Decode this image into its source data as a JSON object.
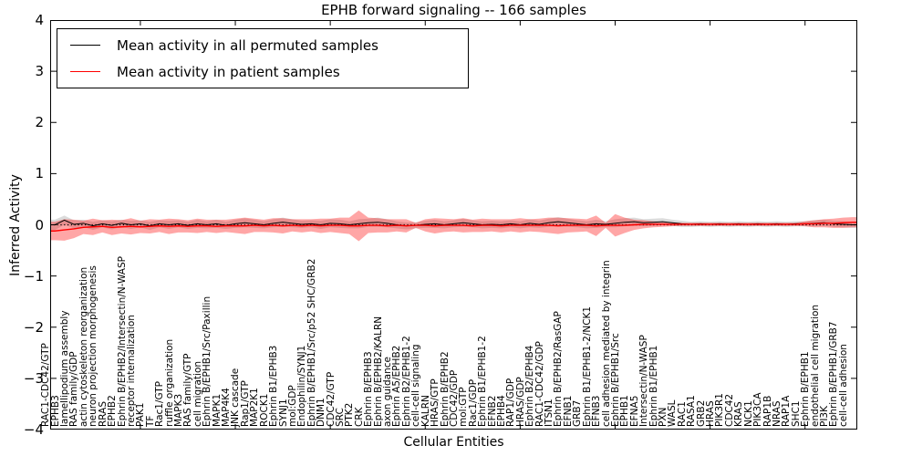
{
  "title": "EPHB forward signaling -- 166 samples",
  "axes": {
    "xlabel": "Cellular Entities",
    "ylabel": "Inferred Activity",
    "yticks": [
      4,
      3,
      2,
      1,
      0,
      -1,
      -2,
      -3,
      -4
    ]
  },
  "legend": [
    {
      "label": "Mean activity in all permuted samples",
      "color": "#000000"
    },
    {
      "label": "Mean activity in patient samples",
      "color": "#ff0000"
    }
  ],
  "colors": {
    "permuted_line": "#000000",
    "patient_line": "#ff0000",
    "patient_band": "#ff0000",
    "permuted_band": "#bdbdbd",
    "frame": "#000000"
  },
  "chart_data": {
    "type": "line",
    "title": "EPHB forward signaling -- 166 samples",
    "xlabel": "Cellular Entities",
    "ylabel": "Inferred Activity",
    "ylim": [
      -4,
      4
    ],
    "grid": false,
    "legend_position": "upper left",
    "zero_line_dotted": true,
    "categories": [
      "RAC1-CDC42/GTP",
      "EPHB3",
      "lamellipodium assembly",
      "RAS family/GDP",
      "actin cytoskeleton reorganization",
      "neuron projection morphogenesis",
      "RRAS",
      "EPHB2",
      "Ephrin B/EPHB2/Intersectin/N-WASP",
      "receptor internalization",
      "PAK1",
      "TF",
      "Rac1/GTP",
      "ruffle organization",
      "MAPK3",
      "RAS family/GTP",
      "cell migration",
      "Ephrin B/EPHB1/Src/Paxillin",
      "MAPK1",
      "MAP4K4",
      "JNK cascade",
      "Rap1/GTP",
      "MAP2K1",
      "ROCK1",
      "Ephrin B1/EPHB3",
      "SYNJ1",
      "mol:GDP",
      "Endophilin/SYNJ1",
      "Ephrin B/EPHB1/Src/p52 SHC/GRB2",
      "DNM1",
      "CDC42/GTP",
      "SRC",
      "PTK2",
      "CRK",
      "Ephrin B/EPHB3",
      "Ephrin B/EPHB2/KALRN",
      "axon guidance",
      "Ephrin A5/EPHB2",
      "Ephrin B2/EPHB1-2",
      "cell-cell signaling",
      "KALRN",
      "HRAS/GTP",
      "Ephrin B/EPHB2",
      "CDC42/GDP",
      "mol:GTP",
      "Rac1/GDP",
      "Ephrin B1/EPHB1-2",
      "EFNB2",
      "EPHB4",
      "RAP1/GDP",
      "HRAS/GDP",
      "Ephrin B2/EPHB4",
      "RAC1-CDC42/GDP",
      "ITSN1",
      "Ephrin B/EPHB2/RasGAP",
      "EFNB1",
      "GRB7",
      "Ephrin B1/EPHB1-2/NCK1",
      "EFNB3",
      "cell adhesion mediated by integrin",
      "Ephrin B/EPHB1/Src",
      "EPHB1",
      "EFNA5",
      "Intersectin/N-WASP",
      "Ephrin B1/EPHB1",
      "PXN",
      "WASL",
      "RAC1",
      "RASA1",
      "GRB2",
      "HRAS",
      "PIK3R1",
      "CDC42",
      "KRAS",
      "NCK1",
      "PIK3CA",
      "RAP1B",
      "NRAS",
      "RAP1A",
      "SHC1",
      "Ephrin B/EPHB1",
      "endothelial cell migration",
      "PI3K",
      "Ephrin B/EPHB1/GRB7",
      "cell-cell adhesion"
    ],
    "series": [
      {
        "name": "Mean activity in all permuted samples",
        "color": "#000000",
        "values": [
          0.0,
          0.09,
          0.01,
          0.03,
          -0.02,
          0.02,
          -0.01,
          0.03,
          0.0,
          0.02,
          -0.02,
          0.02,
          0.0,
          0.02,
          -0.01,
          0.02,
          0.0,
          0.02,
          -0.01,
          0.02,
          0.04,
          0.02,
          0.0,
          0.03,
          0.05,
          0.03,
          0.01,
          0.02,
          0.0,
          0.03,
          0.02,
          0.0,
          0.02,
          0.04,
          0.05,
          0.03,
          0.0,
          -0.02,
          -0.01,
          0.01,
          0.02,
          0.0,
          0.02,
          0.04,
          0.02,
          0.0,
          0.01,
          0.0,
          0.02,
          0.0,
          0.03,
          0.01,
          0.04,
          0.06,
          0.04,
          0.02,
          0.0,
          0.02,
          0.01,
          0.03,
          0.05,
          0.06,
          0.04,
          0.05,
          0.06,
          0.04,
          0.02,
          0.01,
          0.02,
          0.01,
          0.02,
          0.01,
          0.02,
          0.01,
          0.02,
          0.01,
          0.02,
          0.01,
          0.02,
          0.02,
          0.03,
          0.04,
          0.02,
          0.01,
          0.0
        ]
      },
      {
        "name": "Mean activity in patient samples",
        "color": "#ff0000",
        "values": [
          -0.12,
          -0.1,
          -0.08,
          -0.05,
          -0.04,
          -0.03,
          -0.05,
          -0.04,
          -0.03,
          -0.04,
          -0.03,
          -0.02,
          -0.03,
          -0.02,
          -0.03,
          -0.02,
          -0.02,
          -0.03,
          -0.02,
          -0.02,
          -0.02,
          -0.01,
          -0.02,
          -0.01,
          -0.02,
          -0.01,
          -0.02,
          -0.01,
          -0.02,
          -0.01,
          -0.01,
          -0.02,
          -0.02,
          -0.01,
          -0.01,
          -0.02,
          -0.01,
          -0.02,
          -0.01,
          -0.01,
          -0.02,
          -0.01,
          -0.01,
          -0.01,
          -0.02,
          -0.01,
          -0.01,
          -0.02,
          -0.01,
          -0.01,
          -0.01,
          -0.01,
          -0.01,
          -0.02,
          -0.01,
          -0.01,
          -0.01,
          -0.02,
          -0.01,
          -0.01,
          -0.01,
          0.0,
          0.01,
          0.01,
          0.01,
          0.01,
          0.01,
          0.01,
          0.01,
          0.01,
          0.01,
          0.01,
          0.01,
          0.01,
          0.01,
          0.01,
          0.01,
          0.01,
          0.01,
          0.02,
          0.02,
          0.03,
          0.03,
          0.04,
          0.05
        ]
      }
    ],
    "bands": [
      {
        "name": "permuted-band",
        "center_series": 0,
        "color": "#bdbdbd",
        "opacity": 0.55,
        "half_widths": [
          0.1,
          0.09,
          0.08,
          0.07,
          0.08,
          0.07,
          0.08,
          0.07,
          0.08,
          0.07,
          0.08,
          0.07,
          0.08,
          0.07,
          0.07,
          0.08,
          0.07,
          0.08,
          0.07,
          0.08,
          0.09,
          0.08,
          0.07,
          0.08,
          0.09,
          0.08,
          0.07,
          0.07,
          0.08,
          0.08,
          0.08,
          0.07,
          0.09,
          0.08,
          0.09,
          0.08,
          0.07,
          0.07,
          0.06,
          0.07,
          0.08,
          0.07,
          0.07,
          0.08,
          0.07,
          0.07,
          0.07,
          0.07,
          0.07,
          0.07,
          0.08,
          0.07,
          0.08,
          0.09,
          0.08,
          0.07,
          0.07,
          0.08,
          0.06,
          0.08,
          0.08,
          0.08,
          0.07,
          0.07,
          0.07,
          0.06,
          0.06,
          0.05,
          0.05,
          0.05,
          0.05,
          0.05,
          0.05,
          0.05,
          0.05,
          0.05,
          0.05,
          0.05,
          0.05,
          0.05,
          0.06,
          0.06,
          0.06,
          0.06,
          0.06
        ]
      },
      {
        "name": "patient-band",
        "center_series": 1,
        "color": "#ff0000",
        "opacity": 0.35,
        "half_widths": [
          0.18,
          0.21,
          0.18,
          0.13,
          0.16,
          0.12,
          0.15,
          0.13,
          0.16,
          0.12,
          0.14,
          0.12,
          0.15,
          0.13,
          0.12,
          0.14,
          0.12,
          0.13,
          0.12,
          0.14,
          0.16,
          0.13,
          0.12,
          0.14,
          0.15,
          0.12,
          0.13,
          0.12,
          0.14,
          0.13,
          0.15,
          0.16,
          0.3,
          0.15,
          0.14,
          0.13,
          0.12,
          0.13,
          0.05,
          0.12,
          0.15,
          0.13,
          0.12,
          0.14,
          0.12,
          0.13,
          0.12,
          0.13,
          0.12,
          0.14,
          0.12,
          0.13,
          0.15,
          0.16,
          0.14,
          0.13,
          0.12,
          0.2,
          0.05,
          0.22,
          0.15,
          0.1,
          0.08,
          0.06,
          0.05,
          0.04,
          0.03,
          0.03,
          0.03,
          0.03,
          0.03,
          0.03,
          0.03,
          0.03,
          0.03,
          0.03,
          0.03,
          0.03,
          0.03,
          0.05,
          0.07,
          0.08,
          0.09,
          0.1,
          0.1
        ]
      }
    ]
  }
}
